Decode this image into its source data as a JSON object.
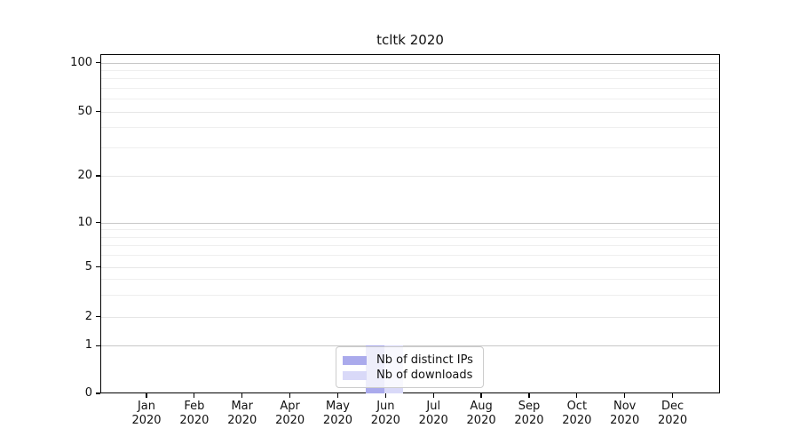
{
  "chart_data": {
    "type": "bar",
    "title": "tcltk 2020",
    "year": "2020",
    "categories": [
      "Jan",
      "Feb",
      "Mar",
      "Apr",
      "May",
      "Jun",
      "Jul",
      "Aug",
      "Sep",
      "Oct",
      "Nov",
      "Dec"
    ],
    "series": [
      {
        "name": "Nb of distinct IPs",
        "color": "#aaaaec",
        "values": [
          0,
          0,
          0,
          0,
          0,
          1,
          0,
          0,
          0,
          0,
          0,
          0
        ]
      },
      {
        "name": "Nb of downloads",
        "color": "#d9d9f8",
        "values": [
          0,
          0,
          0,
          0,
          0,
          1,
          0,
          0,
          0,
          0,
          0,
          0
        ]
      }
    ],
    "y_axis": {
      "scale": "log-like with linear 0-1 segment",
      "ticks": [
        100,
        50,
        20,
        10,
        5,
        2,
        1,
        0
      ],
      "minor_ticks": [
        90,
        80,
        70,
        60,
        40,
        30,
        9,
        8,
        7,
        6,
        4,
        3
      ],
      "range": [
        0,
        110
      ]
    },
    "x_axis": {
      "tick_label_line2": "2020"
    },
    "legend": {
      "position": "bottom-center",
      "labels": [
        "Nb of distinct IPs",
        "Nb of downloads"
      ]
    },
    "grid": true
  },
  "colors": {
    "background": "#ffffff",
    "axis": "#000000",
    "grid_decade": "#c8c8c8",
    "grid_labeled": "#e6e6e6",
    "grid_minor": "#efefef",
    "legend_border": "#cccccc",
    "text": "#111111"
  }
}
